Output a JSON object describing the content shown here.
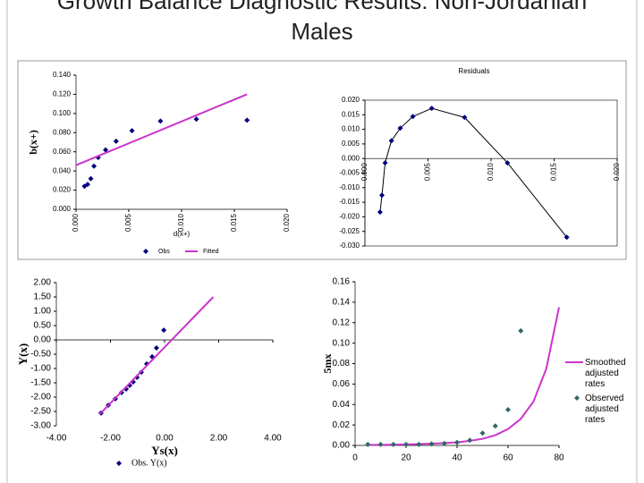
{
  "title": "Growth Balance Diagnostic Results: Non-Jordanian Males",
  "chart_data": [
    {
      "type": "scatter",
      "xlabel": "d(x+)",
      "ylabel": "b(x+)",
      "xlim": [
        0,
        0.02
      ],
      "xticks": [
        {
          "value": 0,
          "label": "0.000"
        },
        {
          "value": 0.005,
          "label": "0.005"
        },
        {
          "value": 0.01,
          "label": "0.010"
        },
        {
          "value": 0.015,
          "label": "0.015"
        },
        {
          "value": 0.02,
          "label": "0.020"
        }
      ],
      "ylim": [
        0,
        0.14
      ],
      "yticks": [
        {
          "value": 0,
          "label": "0.000"
        },
        {
          "value": 0.02,
          "label": "0.020"
        },
        {
          "value": 0.04,
          "label": "0.040"
        },
        {
          "value": 0.06,
          "label": "0.060"
        },
        {
          "value": 0.08,
          "label": "0.080"
        },
        {
          "value": 0.1,
          "label": "0.100"
        },
        {
          "value": 0.12,
          "label": "0.120"
        },
        {
          "value": 0.14,
          "label": "0.140"
        }
      ],
      "series": [
        {
          "name": "Obs",
          "mode": "markers",
          "color": "#000080",
          "x": [
            0.0008,
            0.0011,
            0.0014,
            0.0017,
            0.0021,
            0.0028,
            0.0038,
            0.0053,
            0.008,
            0.0114,
            0.0162
          ],
          "values": [
            0.024,
            0.026,
            0.032,
            0.045,
            0.054,
            0.062,
            0.071,
            0.082,
            0.092,
            0.094,
            0.093
          ]
        },
        {
          "name": "Fitted",
          "mode": "line",
          "color": "#cc33cc",
          "x": [
            0,
            0.0162
          ],
          "values": [
            0.046,
            0.12
          ]
        }
      ]
    },
    {
      "type": "scatter",
      "title": "Residuals",
      "xlim": [
        0,
        0.02
      ],
      "xticks": [
        {
          "value": 0,
          "label": "0.000"
        },
        {
          "value": 0.005,
          "label": "0.005"
        },
        {
          "value": 0.01,
          "label": "0.010"
        },
        {
          "value": 0.015,
          "label": "0.015"
        },
        {
          "value": 0.02,
          "label": "0.020"
        }
      ],
      "ylim": [
        -0.03,
        0.02
      ],
      "yticks": [
        {
          "value": -0.03,
          "label": "-0.030"
        },
        {
          "value": -0.025,
          "label": "-0.025"
        },
        {
          "value": -0.02,
          "label": "-0.020"
        },
        {
          "value": -0.015,
          "label": "-0.015"
        },
        {
          "value": -0.01,
          "label": "-0.010"
        },
        {
          "value": -0.005,
          "label": "-0.005"
        },
        {
          "value": 0,
          "label": "0.000"
        },
        {
          "value": 0.005,
          "label": "0.005"
        },
        {
          "value": 0.01,
          "label": "0.010"
        },
        {
          "value": 0.015,
          "label": "0.015"
        },
        {
          "value": 0.02,
          "label": "0.020"
        }
      ],
      "series": [
        {
          "mode": "line+markers",
          "color": "#000080",
          "x": [
            0.0012,
            0.00135,
            0.0016,
            0.0021,
            0.0028,
            0.0038,
            0.0053,
            0.0079,
            0.0113,
            0.016
          ],
          "values": [
            -0.0184,
            -0.0126,
            -0.0015,
            0.0061,
            0.0104,
            0.0144,
            0.0172,
            0.0141,
            -0.0015,
            -0.027
          ]
        }
      ]
    },
    {
      "type": "scatter",
      "xlabel": "Ys(x)",
      "ylabel": "Y(x)",
      "xlim": [
        -4,
        4
      ],
      "xticks": [
        {
          "value": -4,
          "label": "-4.00"
        },
        {
          "value": -2,
          "label": "-2.00"
        },
        {
          "value": 0,
          "label": "0.00"
        },
        {
          "value": 2,
          "label": "2.00"
        },
        {
          "value": 4,
          "label": "4.00"
        }
      ],
      "ylim": [
        -3,
        2
      ],
      "yticks": [
        {
          "value": -3,
          "label": "-3.00"
        },
        {
          "value": -2.5,
          "label": "-2.50"
        },
        {
          "value": -2,
          "label": "-2.00"
        },
        {
          "value": -1.5,
          "label": "-1.50"
        },
        {
          "value": -1,
          "label": "-1.00"
        },
        {
          "value": -0.5,
          "label": "-0.50"
        },
        {
          "value": 0,
          "label": "0.00"
        },
        {
          "value": 0.5,
          "label": "0.50"
        },
        {
          "value": 1,
          "label": "1.00"
        },
        {
          "value": 1.5,
          "label": "1.50"
        },
        {
          "value": 2,
          "label": "2.00"
        }
      ],
      "series": [
        {
          "name": "Obs. Y(x)",
          "mode": "markers",
          "color": "#000080",
          "x": [
            -2.35,
            -2.08,
            -1.82,
            -1.59,
            -1.42,
            -1.29,
            -1.16,
            -1.02,
            -0.86,
            -0.66,
            -0.46,
            -0.3,
            -0.03
          ],
          "values": [
            -2.56,
            -2.28,
            -2.06,
            -1.84,
            -1.72,
            -1.59,
            -1.47,
            -1.31,
            -1.13,
            -0.84,
            -0.59,
            -0.28,
            0.34
          ]
        },
        {
          "mode": "line",
          "color": "#cc33cc",
          "x": [
            -2.4,
            1.8
          ],
          "values": [
            -2.6,
            1.5
          ]
        }
      ]
    },
    {
      "type": "scatter",
      "ylabel": "5mx",
      "xlim": [
        0,
        80
      ],
      "xticks": [
        0,
        20,
        40,
        60,
        80
      ],
      "ylim": [
        0,
        0.16
      ],
      "yticks": [
        {
          "value": 0,
          "label": "0.00"
        },
        {
          "value": 0.02,
          "label": "0.02"
        },
        {
          "value": 0.04,
          "label": "0.04"
        },
        {
          "value": 0.06,
          "label": "0.06"
        },
        {
          "value": 0.08,
          "label": "0.08"
        },
        {
          "value": 0.1,
          "label": "0.10"
        },
        {
          "value": 0.12,
          "label": "0.12"
        },
        {
          "value": 0.14,
          "label": "0.14"
        },
        {
          "value": 0.16,
          "label": "0.16"
        }
      ],
      "series": [
        {
          "name": "Smoothed adjusted rates",
          "mode": "line",
          "color": "#cc33cc",
          "x": [
            5,
            10,
            15,
            20,
            25,
            30,
            35,
            40,
            45,
            50,
            55,
            60,
            65,
            70,
            75,
            80
          ],
          "values": [
            0.0005,
            0.0006,
            0.0008,
            0.001,
            0.0013,
            0.0017,
            0.0023,
            0.003,
            0.0045,
            0.0065,
            0.01,
            0.016,
            0.026,
            0.043,
            0.075,
            0.135
          ]
        },
        {
          "name": "Observed adjusted rates",
          "mode": "markers",
          "color": "#336666",
          "x": [
            5,
            10,
            15,
            20,
            25,
            30,
            35,
            40,
            45,
            50,
            55,
            60,
            65
          ],
          "values": [
            0.001,
            0.001,
            0.001,
            0.001,
            0.001,
            0.0015,
            0.002,
            0.003,
            0.005,
            0.012,
            0.019,
            0.035,
            0.112
          ]
        }
      ]
    }
  ]
}
